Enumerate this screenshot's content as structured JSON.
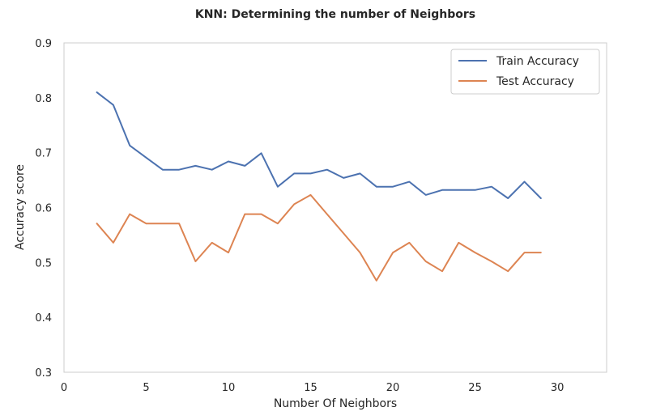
{
  "chart_data": {
    "type": "line",
    "title": "KNN: Determining the number of Neighbors",
    "xlabel": "Number Of Neighbors",
    "ylabel": "Accuracy score",
    "xlim": [
      0,
      33
    ],
    "ylim": [
      0.3,
      0.9
    ],
    "xticks": [
      0,
      5,
      10,
      15,
      20,
      25,
      30
    ],
    "xtick_labels": [
      "0",
      "5",
      "10",
      "15",
      "20",
      "25",
      "30"
    ],
    "yticks": [
      0.3,
      0.4,
      0.5,
      0.6,
      0.7,
      0.8,
      0.9
    ],
    "ytick_labels": [
      "0.3",
      "0.4",
      "0.5",
      "0.6",
      "0.7",
      "0.8",
      "0.9"
    ],
    "grid": false,
    "legend_position": "top-right",
    "x": [
      2,
      3,
      4,
      5,
      6,
      7,
      8,
      9,
      10,
      11,
      12,
      13,
      14,
      15,
      16,
      17,
      18,
      19,
      20,
      21,
      22,
      23,
      24,
      25,
      26,
      27,
      28,
      29
    ],
    "series": [
      {
        "name": "Train Accuracy",
        "color": "#4c72b0",
        "values": [
          0.81,
          0.787,
          0.713,
          0.691,
          0.669,
          0.669,
          0.676,
          0.669,
          0.684,
          0.676,
          0.699,
          0.638,
          0.662,
          0.662,
          0.669,
          0.654,
          0.662,
          0.638,
          0.638,
          0.647,
          0.623,
          0.632,
          0.632,
          0.632,
          0.638,
          0.617,
          0.647,
          0.617
        ]
      },
      {
        "name": "Test Accuracy",
        "color": "#dd8452",
        "values": [
          0.571,
          0.536,
          0.588,
          0.571,
          0.571,
          0.571,
          0.502,
          0.536,
          0.518,
          0.588,
          0.588,
          0.571,
          0.606,
          0.623,
          0.588,
          0.553,
          0.518,
          0.467,
          0.518,
          0.536,
          0.502,
          0.484,
          0.536,
          0.518,
          0.502,
          0.484,
          0.518,
          0.518
        ]
      }
    ]
  }
}
